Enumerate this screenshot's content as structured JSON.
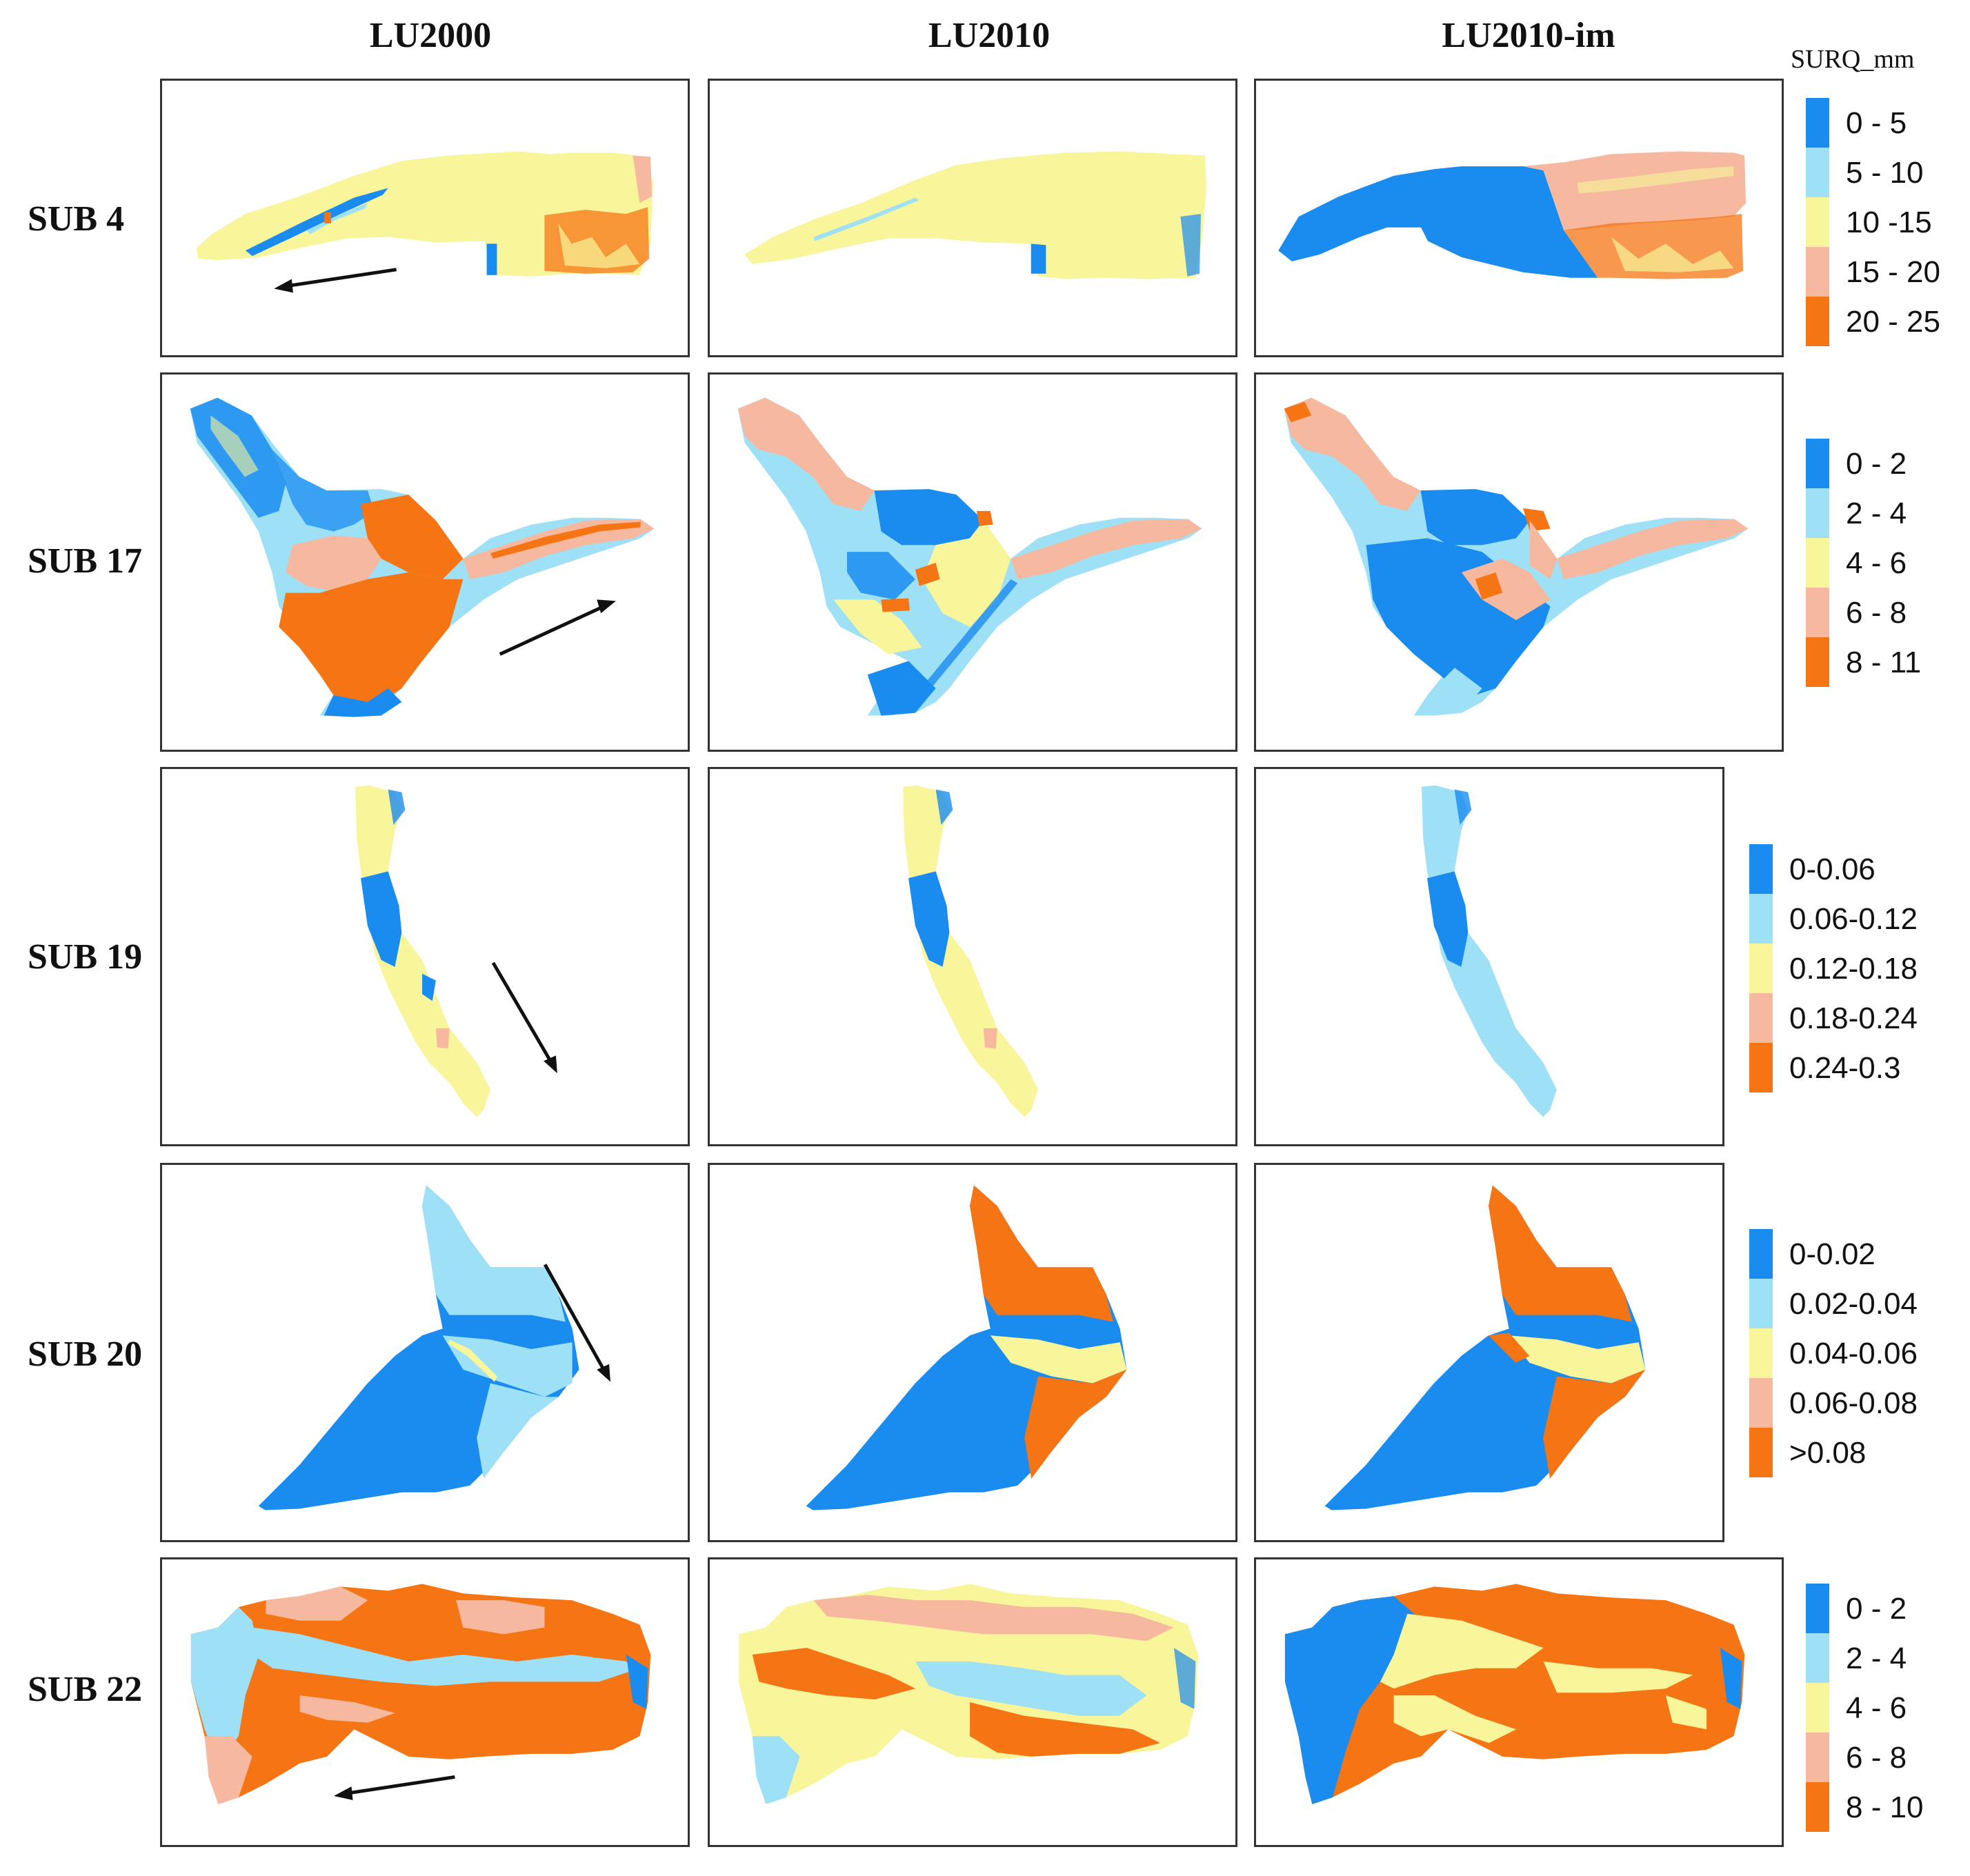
{
  "columns": [
    {
      "label": "LU2000"
    },
    {
      "label": "LU2010"
    },
    {
      "label": "LU2010-im"
    }
  ],
  "legend_title": "SURQ_mm",
  "colors": [
    "#1a8cf0",
    "#9ee0f6",
    "#f8f59a",
    "#f6b9a0",
    "#f57514"
  ],
  "rows": [
    {
      "label": "SUB 4",
      "legend": [
        "0 - 5",
        "5 - 10",
        "10 -15",
        "15 - 20",
        "20 - 25"
      ]
    },
    {
      "label": "SUB 17",
      "legend": [
        "0 - 2",
        "2 - 4",
        "4 - 6",
        "6 - 8",
        "8 - 11"
      ]
    },
    {
      "label": "SUB 19",
      "legend": [
        "0-0.06",
        "0.06-0.12",
        "0.12-0.18",
        "0.18-0.24",
        "0.24-0.3"
      ]
    },
    {
      "label": "SUB 20",
      "legend": [
        "0-0.02",
        "0.02-0.04",
        "0.04-0.06",
        "0.06-0.08",
        ">0.08"
      ]
    },
    {
      "label": "SUB 22",
      "legend": [
        "0 - 2",
        "2 - 4",
        "4 - 6",
        "6 - 8",
        "8 - 10"
      ]
    }
  ]
}
